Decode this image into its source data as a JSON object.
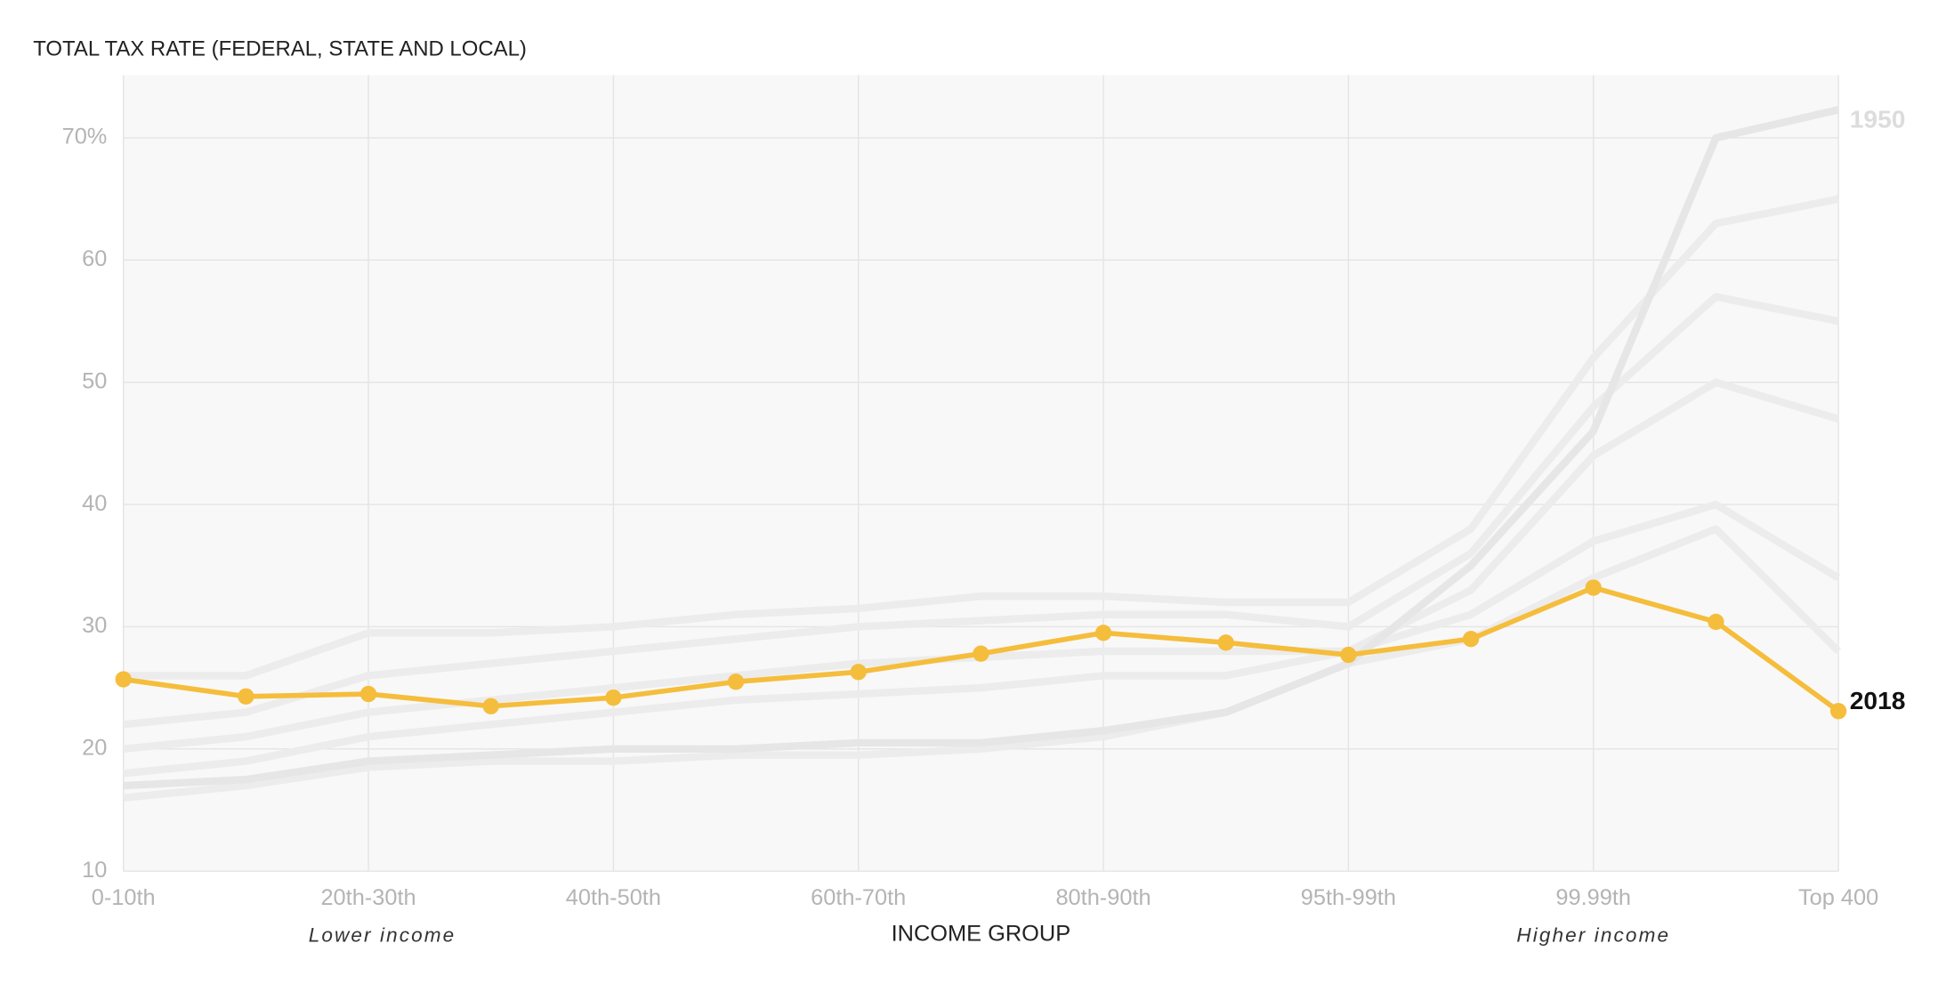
{
  "chart_data": {
    "type": "line",
    "title": "TOTAL TAX RATE (FEDERAL, STATE AND LOCAL)",
    "x_label": "INCOME GROUP",
    "annotations": [
      {
        "text": "Lower income",
        "category_index": 2
      },
      {
        "text": "Higher income",
        "category_index": 12
      }
    ],
    "categories": [
      "0-10th",
      null,
      "20th-30th",
      null,
      "40th-50th",
      null,
      "60th-70th",
      null,
      "80th-90th",
      null,
      "95th-99th",
      null,
      "99.99th",
      null,
      "Top 400"
    ],
    "ylim": [
      10,
      75
    ],
    "yticks": [
      10,
      20,
      30,
      40,
      50,
      60,
      {
        "value": 70,
        "label": "70%"
      }
    ],
    "grid": true,
    "series": [
      {
        "color": "#ececec",
        "values": [
          26,
          26,
          29.5,
          29.5,
          30,
          31,
          31.5,
          32.5,
          32.5,
          32,
          32,
          38,
          52,
          63,
          65
        ]
      },
      {
        "color": "#ececec",
        "values": [
          22,
          23,
          26,
          27,
          28,
          29,
          30,
          30.5,
          31,
          31,
          30,
          36,
          48,
          57,
          55
        ]
      },
      {
        "color": "#ececec",
        "values": [
          20,
          21,
          23,
          24,
          25,
          26,
          27,
          27.5,
          28,
          28,
          28,
          33,
          44,
          50,
          47
        ]
      },
      {
        "color": "#ececec",
        "values": [
          18,
          19,
          21,
          22,
          23,
          24,
          24.5,
          25,
          26,
          26,
          28,
          31,
          37,
          40,
          34
        ]
      },
      {
        "color": "#ececec",
        "values": [
          16,
          17,
          18.5,
          19,
          19,
          19.5,
          19.5,
          20,
          21,
          23,
          27,
          29,
          34,
          38,
          28
        ]
      },
      {
        "name": "1950",
        "color": "#e6e6e6",
        "values": [
          17,
          17.5,
          19,
          19.5,
          20,
          20,
          20.5,
          20.5,
          21.5,
          23,
          27,
          35,
          46,
          70,
          72.3
        ]
      },
      {
        "name": "2018",
        "color": "#f5bd3c",
        "markers": true,
        "values": [
          25.7,
          24.3,
          24.5,
          23.5,
          24.2,
          25.5,
          26.3,
          27.8,
          29.5,
          28.7,
          27.7,
          29.0,
          33.2,
          30.4,
          23.1
        ]
      }
    ]
  }
}
